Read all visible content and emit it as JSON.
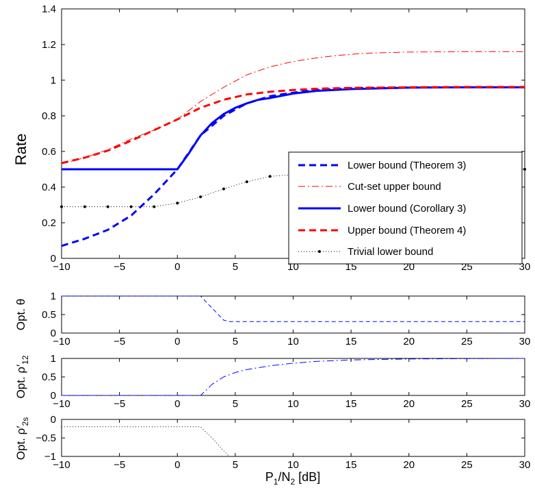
{
  "chart_data": [
    {
      "type": "line",
      "ylabel": "Rate",
      "xlim": [
        -10,
        30
      ],
      "ylim": [
        0,
        1.4
      ],
      "xticks": [
        -10,
        -5,
        0,
        5,
        10,
        15,
        20,
        25,
        30
      ],
      "yticks": [
        0,
        0.2,
        0.4,
        0.6,
        0.8,
        1,
        1.2,
        1.4
      ],
      "xtick_labels": [
        "−10",
        "−5",
        "0",
        "5",
        "10",
        "15",
        "20",
        "25",
        "30"
      ],
      "ytick_labels": [
        "0",
        "0.2",
        "0.4",
        "0.6",
        "0.8",
        "1",
        "1.2",
        "1.4"
      ],
      "legend_position": "bottom-right",
      "series": [
        {
          "name": "Lower bound (Theorem 3)",
          "style": "dashed-thick",
          "color": "#0000ff",
          "x": [
            -10,
            -8,
            -6,
            -4,
            -2,
            0,
            2,
            4,
            6,
            8,
            10,
            12,
            15,
            20,
            25,
            30
          ],
          "y": [
            0.07,
            0.11,
            0.16,
            0.24,
            0.36,
            0.5,
            0.69,
            0.8,
            0.87,
            0.91,
            0.93,
            0.945,
            0.955,
            0.96,
            0.96,
            0.96
          ]
        },
        {
          "name": "Cut-set upper bound",
          "style": "dashdot-thin",
          "color": "#ff0000",
          "x": [
            -10,
            -8,
            -6,
            -4,
            -2,
            0,
            2,
            4,
            6,
            8,
            10,
            12,
            14,
            16,
            18,
            20,
            25,
            30
          ],
          "y": [
            0.53,
            0.565,
            0.61,
            0.67,
            0.72,
            0.78,
            0.88,
            0.96,
            1.03,
            1.075,
            1.105,
            1.125,
            1.14,
            1.15,
            1.155,
            1.158,
            1.16,
            1.16
          ]
        },
        {
          "name": "Lower bound (Corollary 3)",
          "style": "solid-thick",
          "color": "#0000ff",
          "x": [
            -10,
            -8,
            -6,
            -4,
            -2,
            0,
            1,
            2,
            3,
            4,
            5,
            6,
            7,
            8,
            10,
            12,
            15,
            20,
            25,
            30
          ],
          "y": [
            0.5,
            0.5,
            0.5,
            0.5,
            0.5,
            0.5,
            0.59,
            0.69,
            0.76,
            0.81,
            0.845,
            0.87,
            0.89,
            0.9,
            0.925,
            0.94,
            0.95,
            0.958,
            0.96,
            0.96
          ]
        },
        {
          "name": "Upper bound (Theorem 4)",
          "style": "dashed-thick",
          "color": "#ff0000",
          "x": [
            -10,
            -8,
            -6,
            -4,
            -2,
            0,
            2,
            4,
            6,
            8,
            10,
            12,
            15,
            20,
            25,
            30
          ],
          "y": [
            0.535,
            0.565,
            0.605,
            0.66,
            0.72,
            0.78,
            0.845,
            0.89,
            0.92,
            0.935,
            0.945,
            0.952,
            0.957,
            0.96,
            0.962,
            0.962
          ]
        },
        {
          "name": "Trivial lower bound",
          "style": "dotted-markers",
          "color": "#000000",
          "x": [
            -10,
            -8,
            -6,
            -4,
            -2,
            0,
            2,
            4,
            6,
            8,
            10,
            12,
            14,
            16,
            18,
            20,
            22,
            24,
            26,
            28,
            30
          ],
          "y": [
            0.29,
            0.29,
            0.29,
            0.29,
            0.29,
            0.31,
            0.345,
            0.39,
            0.43,
            0.46,
            0.47,
            0.48,
            0.486,
            0.49,
            0.493,
            0.495,
            0.497,
            0.498,
            0.499,
            0.5,
            0.5
          ]
        }
      ]
    },
    {
      "type": "line",
      "ylabel": "Opt. θ",
      "xlim": [
        -10,
        30
      ],
      "ylim": [
        0,
        1
      ],
      "xticks": [
        -10,
        -5,
        0,
        5,
        10,
        15,
        20,
        25,
        30
      ],
      "yticks": [
        0,
        0.5,
        1
      ],
      "xtick_labels": [
        "−10",
        "−5",
        "0",
        "5",
        "10",
        "15",
        "20",
        "25",
        "30"
      ],
      "ytick_labels": [
        "0",
        "0.5",
        "1"
      ],
      "series": [
        {
          "style": "dashed-thin",
          "color": "#0000ff",
          "x": [
            -10,
            2,
            4,
            4.5,
            30
          ],
          "y": [
            1,
            1,
            0.35,
            0.31,
            0.31
          ]
        }
      ]
    },
    {
      "type": "line",
      "ylabel": "Opt. ρ′",
      "ylabel_sub": "12",
      "xlim": [
        -10,
        30
      ],
      "ylim": [
        0,
        1
      ],
      "xticks": [
        -10,
        -5,
        0,
        5,
        10,
        15,
        20,
        25,
        30
      ],
      "yticks": [
        0,
        0.5,
        1
      ],
      "xtick_labels": [
        "−10",
        "−5",
        "0",
        "5",
        "10",
        "15",
        "20",
        "25",
        "30"
      ],
      "ytick_labels": [
        "0",
        "0.5",
        "1"
      ],
      "series": [
        {
          "style": "dashdot-thin",
          "color": "#0000ff",
          "x": [
            -10,
            2,
            3,
            4,
            5,
            6,
            8,
            10,
            12,
            15,
            20,
            25,
            30
          ],
          "y": [
            0,
            0,
            0.3,
            0.5,
            0.62,
            0.7,
            0.8,
            0.87,
            0.92,
            0.96,
            0.985,
            0.995,
            1
          ]
        }
      ]
    },
    {
      "type": "line",
      "ylabel": "Opt. ρ′",
      "ylabel_sub": "2s",
      "xlabel_parts": [
        "P",
        "1",
        "/N",
        "2",
        " [dB]"
      ],
      "xlim": [
        -10,
        30
      ],
      "ylim": [
        -1,
        0
      ],
      "xticks": [
        -10,
        -5,
        0,
        5,
        10,
        15,
        20,
        25,
        30
      ],
      "yticks": [
        -1,
        -0.5,
        0
      ],
      "xtick_labels": [
        "−10",
        "−5",
        "0",
        "5",
        "10",
        "15",
        "20",
        "25",
        "30"
      ],
      "ytick_labels": [
        "−1",
        "−0.5",
        "0"
      ],
      "series": [
        {
          "style": "dotted-thin",
          "color": "#000000",
          "x": [
            -10,
            2,
            3,
            4,
            4.5,
            30
          ],
          "y": [
            -0.2,
            -0.2,
            -0.5,
            -0.85,
            -1,
            -1
          ]
        }
      ]
    }
  ]
}
